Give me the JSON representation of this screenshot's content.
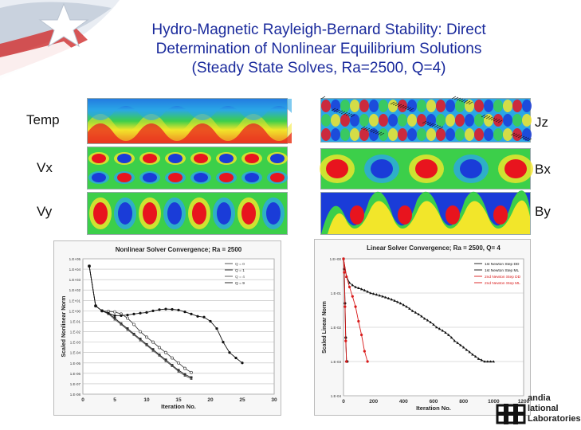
{
  "title": {
    "line1": "Hydro-Magnetic Rayleigh-Bernard Stability: Direct",
    "line2": "Determination of Nonlinear Equilibrium Solutions",
    "line3": "(Steady State Solves, Ra=2500, Q=4)"
  },
  "field_labels": {
    "temp": "Temp",
    "vx": "Vx",
    "vy": "Vy",
    "jz": "Jz",
    "bx": "Bx",
    "by": "By"
  },
  "colors": {
    "title": "#1a2a9c",
    "heat_red": "#e8141e",
    "heat_blue": "#1a3cd8",
    "heat_green": "#3ccf4a",
    "heat_yellow": "#f2e62a"
  },
  "logo": {
    "line1": "andia",
    "line2": "lational",
    "line3": "Laboratories"
  },
  "chart_data": [
    {
      "type": "line",
      "title": "Nonlinear Solver Convergence; Ra = 2500",
      "xlabel": "Iteration No.",
      "ylabel": "Scaled Nonlinear Norm",
      "log_y": true,
      "xlim": [
        0,
        30
      ],
      "ylim": [
        1e-08,
        100000.0
      ],
      "x_ticks": [
        "0",
        "5",
        "10",
        "15",
        "20",
        "25",
        "30"
      ],
      "y_ticks": [
        "1.E+05",
        "1.E+04",
        "1.E+03",
        "1.E+02",
        "1.E+01",
        "1.E+00",
        "1.E-01",
        "1.E-02",
        "1.E-03",
        "1.E-04",
        "1.E-05",
        "1.E-06",
        "1.E-07",
        "1.E-08"
      ],
      "legend_position": "top-right",
      "series": [
        {
          "name": "Q = 0",
          "color": "#444444",
          "x": [
            1,
            2,
            3,
            4,
            5,
            6,
            7,
            8,
            9,
            10,
            11,
            12,
            13,
            14,
            15,
            16,
            17
          ],
          "y": [
            20000,
            3,
            1,
            0.9,
            0.8,
            0.5,
            0.2,
            0.05,
            0.01,
            0.003,
            0.001,
            0.0003,
            0.0001,
            3e-05,
            1e-05,
            3e-06,
            1.2e-06
          ]
        },
        {
          "name": "Q = 1",
          "color": "#222222",
          "x": [
            1,
            2,
            3,
            4,
            5,
            6,
            7,
            8,
            9,
            10,
            11,
            12,
            13,
            14,
            15,
            16,
            17
          ],
          "y": [
            20000,
            3,
            1,
            0.6,
            0.2,
            0.06,
            0.02,
            0.006,
            0.002,
            0.0006,
            0.0002,
            6e-05,
            2e-05,
            6e-06,
            2e-06,
            8e-07,
            4e-07
          ]
        },
        {
          "name": "Q = 4",
          "color": "#555555",
          "x": [
            1,
            2,
            3,
            4,
            5,
            6,
            7,
            8,
            9,
            10,
            11,
            12,
            13,
            14,
            15,
            16,
            17
          ],
          "y": [
            20000,
            3,
            1,
            0.5,
            0.15,
            0.05,
            0.015,
            0.005,
            0.0015,
            0.0005,
            0.00015,
            5e-05,
            1.5e-05,
            5e-06,
            1.5e-06,
            6e-07,
            3e-07
          ]
        },
        {
          "name": "Q = 9",
          "color": "#111111",
          "x": [
            1,
            2,
            3,
            4,
            5,
            6,
            7,
            8,
            9,
            10,
            11,
            12,
            13,
            14,
            15,
            16,
            17,
            18,
            19,
            20,
            21,
            22,
            23,
            24,
            25
          ],
          "y": [
            20000,
            3,
            1,
            0.6,
            0.35,
            0.35,
            0.4,
            0.5,
            0.6,
            0.7,
            1.0,
            1.3,
            1.5,
            1.4,
            1.2,
            0.8,
            0.5,
            0.3,
            0.25,
            0.1,
            0.02,
            0.001,
            0.0001,
            3e-05,
            1e-05
          ]
        }
      ]
    },
    {
      "type": "line",
      "title": "Linear Solver Convergence; Ra = 2500, Q= 4",
      "xlabel": "Iteration No.",
      "ylabel": "Scaled Linear Norm",
      "log_y": true,
      "xlim": [
        0,
        1200
      ],
      "ylim": [
        0.0001,
        1.0
      ],
      "x_ticks": [
        "0",
        "200",
        "400",
        "600",
        "800",
        "1000",
        "1200"
      ],
      "y_ticks": [
        "1.E+00",
        "1.E-01",
        "1.E-02",
        "1.E-03",
        "1.E-04"
      ],
      "legend_position": "top-right",
      "series": [
        {
          "name": "1st Newton Step DD",
          "color": "#111111",
          "x": [
            0,
            20,
            40,
            60,
            80,
            100,
            120,
            140,
            160,
            180,
            200,
            220,
            240,
            260,
            280,
            300,
            320,
            340,
            360,
            380,
            400,
            420,
            440,
            460,
            480,
            500,
            520,
            540,
            560,
            580,
            600,
            620,
            640,
            660,
            680,
            700,
            720,
            740,
            760,
            780,
            800,
            820,
            840,
            860,
            880,
            900,
            920,
            940,
            960,
            980,
            1000
          ],
          "y": [
            1,
            0.3,
            0.2,
            0.17,
            0.15,
            0.14,
            0.13,
            0.12,
            0.11,
            0.1,
            0.095,
            0.09,
            0.085,
            0.08,
            0.075,
            0.07,
            0.065,
            0.06,
            0.055,
            0.05,
            0.045,
            0.04,
            0.035,
            0.03,
            0.027,
            0.024,
            0.021,
            0.018,
            0.016,
            0.014,
            0.012,
            0.01,
            0.009,
            0.008,
            0.007,
            0.006,
            0.005,
            0.004,
            0.0035,
            0.003,
            0.0026,
            0.0022,
            0.0019,
            0.0016,
            0.0014,
            0.0012,
            0.0011,
            0.001,
            0.001,
            0.001,
            0.001
          ]
        },
        {
          "name": "1st Newton Step ML",
          "color": "#111111",
          "x": [
            0,
            5,
            10,
            15,
            20,
            25
          ],
          "y": [
            1,
            0.5,
            0.05,
            0.005,
            0.001,
            0.001
          ]
        },
        {
          "name": "2nd Newton Step DD",
          "color": "#d81818",
          "x": [
            0,
            20,
            40,
            60,
            80,
            100,
            120,
            140,
            160
          ],
          "y": [
            1,
            0.3,
            0.15,
            0.08,
            0.04,
            0.015,
            0.006,
            0.002,
            0.001
          ]
        },
        {
          "name": "2nd Newton Step ML",
          "color": "#d81818",
          "x": [
            0,
            5,
            10,
            15,
            20
          ],
          "y": [
            1,
            0.4,
            0.04,
            0.004,
            0.001
          ]
        }
      ]
    }
  ]
}
